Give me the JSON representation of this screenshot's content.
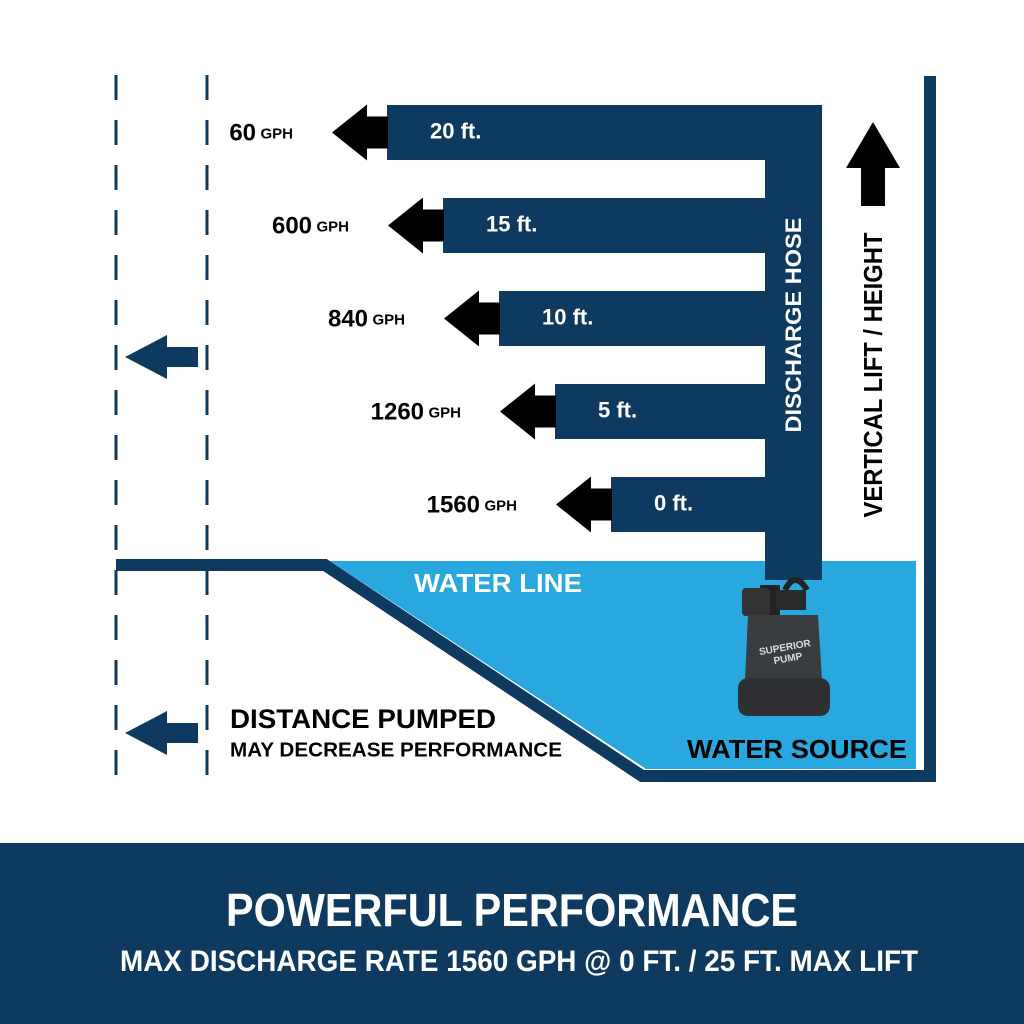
{
  "rows": [
    {
      "rate": "60",
      "unit": "GPH",
      "lift": "20 ft."
    },
    {
      "rate": "600",
      "unit": "GPH",
      "lift": "15 ft."
    },
    {
      "rate": "840",
      "unit": "GPH",
      "lift": "10 ft."
    },
    {
      "rate": "1260",
      "unit": "GPH",
      "lift": "5 ft."
    },
    {
      "rate": "1560",
      "unit": "GPH",
      "lift": "0 ft."
    }
  ],
  "hose_label": "DISCHARGE HOSE",
  "lift_label": "VERTICAL LIFT / HEIGHT",
  "water_line": "WATER LINE",
  "water_source": "WATER SOURCE",
  "pump_label": [
    "SUPERIOR",
    "PUMP"
  ],
  "distance_note": {
    "title": "DISTANCE PUMPED",
    "subtitle": "MAY DECREASE PERFORMANCE"
  },
  "footer": {
    "title": "POWERFUL PERFORMANCE",
    "subtitle": "MAX DISCHARGE RATE 1560 GPH @ 0 FT. / 25 FT. MAX LIFT"
  }
}
